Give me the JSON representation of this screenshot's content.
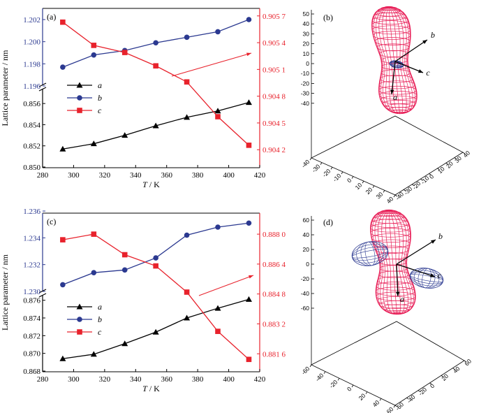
{
  "chart_data": [
    {
      "panel": "(a)",
      "type": "line",
      "xlabel_italic": "T",
      "xlabel_rest": " / K",
      "ylabel": "Lattice parameter / nm",
      "x": [
        293,
        313,
        333,
        353,
        373,
        393,
        413
      ],
      "xlim": [
        280,
        420
      ],
      "x_ticks": [
        "280",
        "300",
        "320",
        "340",
        "360",
        "380",
        "400",
        "420"
      ],
      "left_upper_ylim": [
        1.196,
        1.202
      ],
      "left_upper_ticks": [
        "1.196",
        "1.198",
        "1.200",
        "1.202"
      ],
      "left_lower_ylim": [
        0.85,
        0.857
      ],
      "left_lower_ticks": [
        "0.850",
        "0.852",
        "0.854",
        "0.856"
      ],
      "right_ylim": [
        0.9041,
        0.9058
      ],
      "right_ticks": [
        "0.904 2",
        "0.904 5",
        "0.904 8",
        "0.905 1",
        "0.905 4",
        "0.905 7"
      ],
      "legend_location": "center-left",
      "series": [
        {
          "name": "a",
          "axis": "left-lower",
          "marker": "triangle",
          "color": "#000000",
          "values": [
            0.8517,
            0.8522,
            0.853,
            0.8539,
            0.8547,
            0.8553,
            0.8561
          ]
        },
        {
          "name": "b",
          "axis": "left-upper",
          "marker": "circle",
          "color": "#2b3990",
          "values": [
            1.1977,
            1.1988,
            1.1992,
            1.1999,
            1.2004,
            1.2009,
            1.202
          ]
        },
        {
          "name": "c",
          "axis": "right",
          "marker": "square",
          "color": "#e8222c",
          "values": [
            0.90563,
            0.90537,
            0.90529,
            0.90514,
            0.90496,
            0.90457,
            0.90425
          ]
        }
      ]
    },
    {
      "panel": "(c)",
      "type": "line",
      "xlabel_italic": "T",
      "xlabel_rest": " / K",
      "ylabel": "Lattice parameter / nm",
      "x": [
        293,
        313,
        333,
        353,
        373,
        393,
        413
      ],
      "xlim": [
        280,
        420
      ],
      "x_ticks": [
        "280",
        "300",
        "320",
        "340",
        "360",
        "380",
        "400",
        "420"
      ],
      "left_upper_ylim": [
        1.23,
        1.236
      ],
      "left_upper_ticks": [
        "1.230",
        "1.232",
        "1.234",
        "1.236"
      ],
      "left_lower_ylim": [
        0.868,
        0.877
      ],
      "left_lower_ticks": [
        "0.868",
        "0.870",
        "0.872",
        "0.874",
        "0.876"
      ],
      "right_ylim": [
        0.8806,
        0.8892
      ],
      "right_ticks": [
        "0.881 6",
        "0.883 2",
        "0.884 8",
        "0.886 4",
        "0.888 0"
      ],
      "legend_location": "center-left",
      "series": [
        {
          "name": "a",
          "axis": "left-lower",
          "marker": "triangle",
          "color": "#000000",
          "values": [
            0.8694,
            0.8699,
            0.8711,
            0.8724,
            0.874,
            0.8751,
            0.8761
          ]
        },
        {
          "name": "b",
          "axis": "left-upper",
          "marker": "circle",
          "color": "#2b3990",
          "values": [
            1.2305,
            1.2314,
            1.2316,
            1.2325,
            1.2342,
            1.2348,
            1.2351
          ]
        },
        {
          "name": "c",
          "axis": "right",
          "marker": "square",
          "color": "#e8222c",
          "values": [
            0.8877,
            0.888,
            0.8869,
            0.8863,
            0.8849,
            0.8828,
            0.8813
          ]
        }
      ]
    },
    {
      "panel": "(b)",
      "type": "surface3d",
      "z_ticks": [
        "50",
        "40",
        "30",
        "20",
        "10",
        "0",
        "-10",
        "-20",
        "-30",
        "-40"
      ],
      "x_ticks": [
        "-40",
        "-30",
        "-20",
        "-10",
        "0",
        "10",
        "20",
        "30",
        "40"
      ],
      "y_ticks": [
        "-40",
        "-30",
        "-20",
        "-10",
        "0",
        "10",
        "20",
        "30",
        "40"
      ],
      "arrow_labels": [
        "a",
        "b",
        "c"
      ],
      "surface_colors": {
        "positive": "#e8225a",
        "negative": "#2b3990"
      }
    },
    {
      "panel": "(d)",
      "type": "surface3d",
      "z_ticks": [
        "60",
        "40",
        "20",
        "0",
        "-20",
        "-40",
        "-60"
      ],
      "x_ticks": [
        "-60",
        "-40",
        "-20",
        "0",
        "20",
        "40",
        "60"
      ],
      "y_ticks": [
        "-60",
        "-40",
        "-20",
        "0",
        "20",
        "40",
        "60"
      ],
      "arrow_labels": [
        "a",
        "b",
        "c"
      ],
      "surface_colors": {
        "positive": "#e8225a",
        "negative": "#2b3990"
      }
    }
  ]
}
